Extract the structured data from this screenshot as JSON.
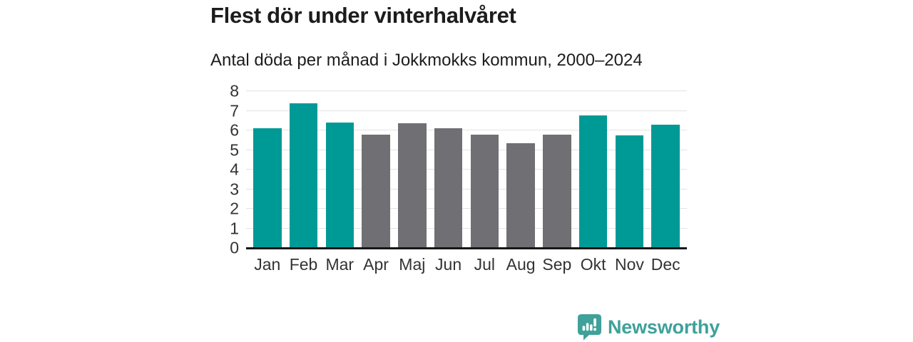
{
  "chart_data": {
    "type": "bar",
    "title": "Flest dör under vinterhalvåret",
    "subtitle": "Antal döda per månad i Jokkmokks kommun, 2000–2024",
    "categories": [
      "Jan",
      "Feb",
      "Mar",
      "Apr",
      "Maj",
      "Jun",
      "Jul",
      "Aug",
      "Sep",
      "Okt",
      "Nov",
      "Dec"
    ],
    "values": [
      6.1,
      7.4,
      6.4,
      5.8,
      6.35,
      6.1,
      5.8,
      5.35,
      5.8,
      6.75,
      5.75,
      6.3
    ],
    "bar_colors": [
      "#009a96",
      "#009a96",
      "#009a96",
      "#706f74",
      "#706f74",
      "#706f74",
      "#706f74",
      "#706f74",
      "#706f74",
      "#009a96",
      "#009a96",
      "#009a96"
    ],
    "highlight_color": "#009a96",
    "base_color": "#706f74",
    "xlabel": "",
    "ylabel": "",
    "ylim": [
      0,
      8
    ],
    "yticks": [
      0,
      1,
      2,
      3,
      4,
      5,
      6,
      7,
      8
    ],
    "grid": true,
    "gridline_color": "#e3e3e3",
    "axis_color": "#161616",
    "legend": "none",
    "background": "#ffffff"
  },
  "footer": {
    "brand": "Newsworthy",
    "brand_color": "#3fa19a",
    "logo_icon": "bar-chart-speech-bubble"
  }
}
